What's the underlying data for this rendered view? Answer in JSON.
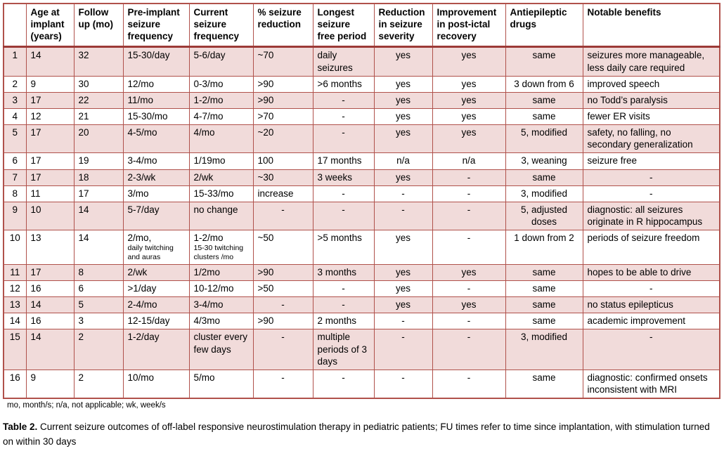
{
  "colors": {
    "border": "#b0514b",
    "border_dark": "#9c3a37",
    "band_fill": "#f1dbda"
  },
  "table": {
    "columns": [
      "",
      "Age at implant (years)",
      "Follow up (mo)",
      "Pre-implant seizure frequency",
      "Current seizure frequency",
      "% seizure reduction",
      "Longest seizure free period",
      "Reduction in seizure severity",
      "Improvement in post-ictal recovery",
      "Antiepileptic drugs",
      "Notable benefits"
    ],
    "rows": [
      {
        "cells": [
          "1",
          "14",
          "32",
          "15-30/day",
          "5-6/day",
          "~70",
          "daily seizures",
          "yes",
          "yes",
          "same",
          "seizures more manageable, less daily care required"
        ]
      },
      {
        "cells": [
          "2",
          "9",
          "30",
          "12/mo",
          "0-3/mo",
          ">90",
          ">6 months",
          "yes",
          "yes",
          "3 down from 6",
          "improved speech"
        ]
      },
      {
        "cells": [
          "3",
          "17",
          "22",
          "11/mo",
          "1-2/mo",
          ">90",
          "-",
          "yes",
          "yes",
          "same",
          "no Todd’s paralysis"
        ]
      },
      {
        "cells": [
          "4",
          "12",
          "21",
          "15-30/mo",
          "4-7/mo",
          ">70",
          "-",
          "yes",
          "yes",
          "same",
          "fewer ER visits"
        ]
      },
      {
        "cells": [
          "5",
          "17",
          "20",
          "4-5/mo",
          "4/mo",
          "~20",
          "-",
          "yes",
          "yes",
          "5, modified",
          "safety, no falling, no secondary generalization"
        ]
      },
      {
        "cells": [
          "6",
          "17",
          "19",
          "3-4/mo",
          "1/19mo",
          "100",
          "17 months",
          "n/a",
          "n/a",
          "3, weaning",
          "seizure free"
        ]
      },
      {
        "cells": [
          "7",
          "17",
          "18",
          "2-3/wk",
          "2/wk",
          "~30",
          "3 weeks",
          "yes",
          "-",
          "same",
          "-"
        ]
      },
      {
        "cells": [
          "8",
          "11",
          "17",
          "3/mo",
          "15-33/mo",
          "increase",
          "-",
          "-",
          "-",
          "3, modified",
          "-"
        ]
      },
      {
        "cells": [
          "9",
          "10",
          "14",
          "5-7/day",
          "no change",
          "-",
          "-",
          "-",
          "-",
          "5, adjusted doses",
          "diagnostic: all seizures originate in R hippocampus"
        ]
      },
      {
        "cells": [
          "10",
          "13",
          "14",
          {
            "main": "2/mo,",
            "sub": "daily twitching and auras"
          },
          {
            "main": "1-2/mo",
            "sub": "15-30 twitching clusters /mo"
          },
          "~50",
          ">5 months",
          "yes",
          "-",
          "1 down from 2",
          "periods of seizure freedom"
        ]
      },
      {
        "cells": [
          "11",
          "17",
          "8",
          "2/wk",
          "1/2mo",
          ">90",
          "3 months",
          "yes",
          "yes",
          "same",
          "hopes to be able to drive"
        ]
      },
      {
        "cells": [
          "12",
          "16",
          "6",
          ">1/day",
          "10-12/mo",
          ">50",
          "-",
          "yes",
          "-",
          "same",
          "-"
        ]
      },
      {
        "cells": [
          "13",
          "14",
          "5",
          "2-4/mo",
          "3-4/mo",
          "-",
          "-",
          "yes",
          "yes",
          "same",
          "no status epilepticus"
        ]
      },
      {
        "cells": [
          "14",
          "16",
          "3",
          "12-15/day",
          "4/3mo",
          ">90",
          "2 months",
          "-",
          "-",
          "same",
          "academic improvement"
        ]
      },
      {
        "cells": [
          "15",
          "14",
          "2",
          "1-2/day",
          "cluster every few days",
          "-",
          "multiple periods of 3 days",
          "-",
          "-",
          "3, modified",
          "-"
        ]
      },
      {
        "cells": [
          "16",
          "9",
          "2",
          "10/mo",
          "5/mo",
          "-",
          "-",
          "-",
          "-",
          "same",
          "diagnostic: confirmed onsets inconsistent with MRI"
        ]
      }
    ]
  },
  "footnote": "mo, month/s; n/a, not applicable; wk, week/s",
  "caption": {
    "label": "Table 2.",
    "text": "Current seizure outcomes of off-label responsive neurostimulation therapy in pediatric patients; FU times refer to time since implantation, with stimulation turned on within 30 days"
  }
}
